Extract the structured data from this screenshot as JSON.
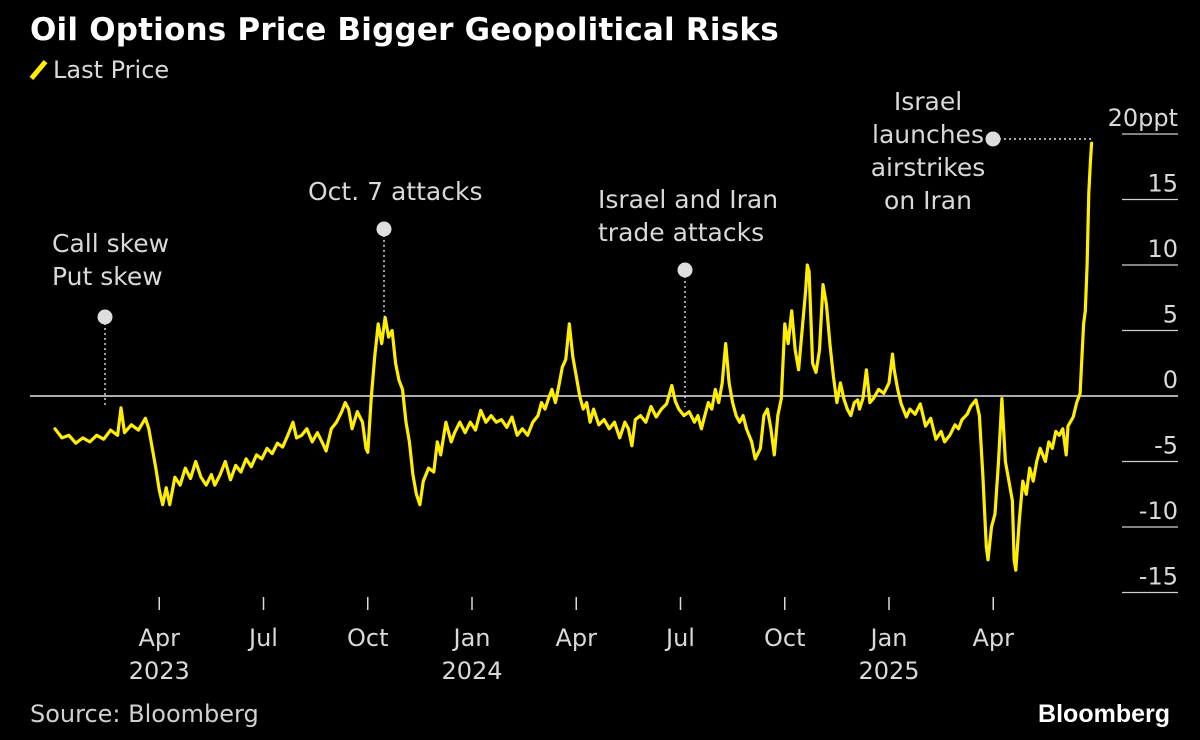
{
  "title": "Oil Options Price Bigger Geopolitical Risks",
  "legend": {
    "label": "Last Price",
    "color": "#ffee00"
  },
  "source": "Source: Bloomberg",
  "brand": "Bloomberg",
  "chart_data": {
    "type": "line",
    "title": "Oil Options Price Bigger Geopolitical Risks",
    "ylabel": "ppt",
    "ylim": [
      -15,
      20
    ],
    "yticks": [
      "-15",
      "-10",
      "-5",
      "0",
      "5",
      "10",
      "15",
      "20ppt"
    ],
    "ytick_values": [
      -15,
      -10,
      -5,
      0,
      5,
      10,
      15,
      20
    ],
    "xlim": [
      0,
      30.2
    ],
    "xticks": [
      {
        "label": "Apr",
        "year": "2023",
        "x": 3
      },
      {
        "label": "Jul",
        "year": "",
        "x": 6
      },
      {
        "label": "Oct",
        "year": "",
        "x": 9
      },
      {
        "label": "Jan",
        "year": "2024",
        "x": 12
      },
      {
        "label": "Apr",
        "year": "",
        "x": 15
      },
      {
        "label": "Jul",
        "year": "",
        "x": 18
      },
      {
        "label": "Oct",
        "year": "",
        "x": 21
      },
      {
        "label": "Jan",
        "year": "2025",
        "x": 24
      },
      {
        "label": "Apr",
        "year": "",
        "x": 27
      }
    ],
    "x_unit": "months since Jan 2023",
    "series": [
      {
        "name": "Last Price",
        "color": "#ffee00",
        "points": [
          [
            0.0,
            -2.5
          ],
          [
            0.2,
            -3.2
          ],
          [
            0.4,
            -3.0
          ],
          [
            0.6,
            -3.6
          ],
          [
            0.8,
            -3.2
          ],
          [
            1.0,
            -3.5
          ],
          [
            1.2,
            -3.0
          ],
          [
            1.4,
            -3.3
          ],
          [
            1.6,
            -2.6
          ],
          [
            1.8,
            -3.0
          ],
          [
            1.9,
            -0.9
          ],
          [
            2.0,
            -2.8
          ],
          [
            2.2,
            -2.2
          ],
          [
            2.4,
            -2.6
          ],
          [
            2.6,
            -1.7
          ],
          [
            2.7,
            -2.5
          ],
          [
            2.9,
            -5.5
          ],
          [
            3.0,
            -7.2
          ],
          [
            3.1,
            -8.3
          ],
          [
            3.2,
            -7.0
          ],
          [
            3.3,
            -8.3
          ],
          [
            3.45,
            -6.2
          ],
          [
            3.6,
            -6.8
          ],
          [
            3.75,
            -5.5
          ],
          [
            3.9,
            -6.3
          ],
          [
            4.05,
            -5.0
          ],
          [
            4.2,
            -6.2
          ],
          [
            4.35,
            -6.8
          ],
          [
            4.5,
            -6.0
          ],
          [
            4.6,
            -6.8
          ],
          [
            4.75,
            -6.0
          ],
          [
            4.9,
            -5.0
          ],
          [
            5.05,
            -6.4
          ],
          [
            5.2,
            -5.3
          ],
          [
            5.35,
            -5.8
          ],
          [
            5.5,
            -4.8
          ],
          [
            5.65,
            -5.4
          ],
          [
            5.8,
            -4.5
          ],
          [
            5.95,
            -4.8
          ],
          [
            6.1,
            -4.0
          ],
          [
            6.25,
            -4.4
          ],
          [
            6.4,
            -3.6
          ],
          [
            6.55,
            -3.9
          ],
          [
            6.7,
            -3.0
          ],
          [
            6.85,
            -2.0
          ],
          [
            6.95,
            -3.2
          ],
          [
            7.1,
            -3.0
          ],
          [
            7.25,
            -2.5
          ],
          [
            7.4,
            -3.5
          ],
          [
            7.55,
            -2.8
          ],
          [
            7.7,
            -3.6
          ],
          [
            7.8,
            -4.2
          ],
          [
            7.95,
            -2.5
          ],
          [
            8.1,
            -2.0
          ],
          [
            8.25,
            -1.2
          ],
          [
            8.35,
            -0.5
          ],
          [
            8.45,
            -1.0
          ],
          [
            8.55,
            -2.5
          ],
          [
            8.7,
            -1.2
          ],
          [
            8.85,
            -2.0
          ],
          [
            8.95,
            -4.0
          ],
          [
            9.0,
            -4.3
          ],
          [
            9.1,
            -0.2
          ],
          [
            9.2,
            3.0
          ],
          [
            9.3,
            5.5
          ],
          [
            9.4,
            4.0
          ],
          [
            9.5,
            6.0
          ],
          [
            9.6,
            4.5
          ],
          [
            9.7,
            5.0
          ],
          [
            9.8,
            2.5
          ],
          [
            9.9,
            1.2
          ],
          [
            10.0,
            0.5
          ],
          [
            10.1,
            -2.0
          ],
          [
            10.2,
            -3.5
          ],
          [
            10.3,
            -6.0
          ],
          [
            10.4,
            -7.5
          ],
          [
            10.5,
            -8.3
          ],
          [
            10.6,
            -6.5
          ],
          [
            10.75,
            -5.5
          ],
          [
            10.9,
            -5.8
          ],
          [
            11.0,
            -3.5
          ],
          [
            11.1,
            -4.5
          ],
          [
            11.25,
            -2.0
          ],
          [
            11.4,
            -3.5
          ],
          [
            11.5,
            -2.8
          ],
          [
            11.65,
            -2.0
          ],
          [
            11.8,
            -2.8
          ],
          [
            11.95,
            -2.0
          ],
          [
            12.1,
            -2.6
          ],
          [
            12.25,
            -1.1
          ],
          [
            12.4,
            -2.0
          ],
          [
            12.55,
            -1.5
          ],
          [
            12.7,
            -2.0
          ],
          [
            12.85,
            -1.8
          ],
          [
            13.0,
            -2.4
          ],
          [
            13.15,
            -1.6
          ],
          [
            13.3,
            -3.0
          ],
          [
            13.45,
            -2.5
          ],
          [
            13.6,
            -3.0
          ],
          [
            13.75,
            -2.0
          ],
          [
            13.9,
            -1.5
          ],
          [
            14.0,
            -0.5
          ],
          [
            14.1,
            -1.0
          ],
          [
            14.2,
            -0.2
          ],
          [
            14.3,
            0.5
          ],
          [
            14.4,
            -0.5
          ],
          [
            14.5,
            0.8
          ],
          [
            14.6,
            2.2
          ],
          [
            14.7,
            2.8
          ],
          [
            14.8,
            5.5
          ],
          [
            14.9,
            3.0
          ],
          [
            15.0,
            1.5
          ],
          [
            15.1,
            0.0
          ],
          [
            15.2,
            -1.0
          ],
          [
            15.3,
            -0.5
          ],
          [
            15.4,
            -2.0
          ],
          [
            15.5,
            -1.0
          ],
          [
            15.65,
            -2.2
          ],
          [
            15.8,
            -1.8
          ],
          [
            15.95,
            -2.5
          ],
          [
            16.1,
            -2.0
          ],
          [
            16.25,
            -3.2
          ],
          [
            16.4,
            -2.0
          ],
          [
            16.5,
            -2.5
          ],
          [
            16.6,
            -3.8
          ],
          [
            16.7,
            -1.8
          ],
          [
            16.85,
            -1.5
          ],
          [
            17.0,
            -2.0
          ],
          [
            17.15,
            -0.8
          ],
          [
            17.3,
            -1.6
          ],
          [
            17.45,
            -1.0
          ],
          [
            17.6,
            -0.6
          ],
          [
            17.75,
            0.8
          ],
          [
            17.85,
            -0.4
          ],
          [
            17.95,
            -1.0
          ],
          [
            18.1,
            -1.5
          ],
          [
            18.25,
            -1.2
          ],
          [
            18.4,
            -2.0
          ],
          [
            18.5,
            -1.5
          ],
          [
            18.6,
            -2.5
          ],
          [
            18.7,
            -1.5
          ],
          [
            18.8,
            -0.5
          ],
          [
            18.9,
            -1.0
          ],
          [
            19.0,
            0.5
          ],
          [
            19.1,
            -0.5
          ],
          [
            19.2,
            1.0
          ],
          [
            19.3,
            4.0
          ],
          [
            19.4,
            1.0
          ],
          [
            19.5,
            -0.5
          ],
          [
            19.6,
            -1.5
          ],
          [
            19.7,
            -2.0
          ],
          [
            19.8,
            -1.5
          ],
          [
            19.9,
            -2.5
          ],
          [
            20.05,
            -3.5
          ],
          [
            20.15,
            -4.8
          ],
          [
            20.3,
            -4.0
          ],
          [
            20.4,
            -1.5
          ],
          [
            20.5,
            -1.0
          ],
          [
            20.6,
            -2.5
          ],
          [
            20.7,
            -4.5
          ],
          [
            20.8,
            -1.5
          ],
          [
            20.9,
            -0.2
          ],
          [
            21.0,
            5.5
          ],
          [
            21.1,
            4.0
          ],
          [
            21.2,
            6.5
          ],
          [
            21.3,
            3.5
          ],
          [
            21.4,
            2.0
          ],
          [
            21.5,
            5.0
          ],
          [
            21.6,
            8.0
          ],
          [
            21.65,
            10.0
          ],
          [
            21.7,
            9.5
          ],
          [
            21.8,
            2.5
          ],
          [
            21.9,
            1.8
          ],
          [
            22.0,
            3.5
          ],
          [
            22.1,
            8.5
          ],
          [
            22.2,
            7.0
          ],
          [
            22.3,
            4.0
          ],
          [
            22.4,
            1.5
          ],
          [
            22.5,
            -0.5
          ],
          [
            22.6,
            1.0
          ],
          [
            22.7,
            -0.2
          ],
          [
            22.8,
            -1.0
          ],
          [
            22.9,
            -1.5
          ],
          [
            23.0,
            -0.5
          ],
          [
            23.1,
            -0.3
          ],
          [
            23.15,
            -1.0
          ],
          [
            23.25,
            -0.2
          ],
          [
            23.35,
            2.0
          ],
          [
            23.45,
            -0.5
          ],
          [
            23.55,
            -0.2
          ],
          [
            23.7,
            0.5
          ],
          [
            23.85,
            0.2
          ],
          [
            24.0,
            1.0
          ],
          [
            24.1,
            3.2
          ],
          [
            24.15,
            2.0
          ],
          [
            24.25,
            0.5
          ],
          [
            24.35,
            -0.6
          ],
          [
            24.5,
            -1.6
          ],
          [
            24.6,
            -1.0
          ],
          [
            24.75,
            -1.4
          ],
          [
            24.9,
            -0.6
          ],
          [
            25.05,
            -2.3
          ],
          [
            25.2,
            -1.7
          ],
          [
            25.35,
            -3.3
          ],
          [
            25.5,
            -2.7
          ],
          [
            25.6,
            -3.5
          ],
          [
            25.75,
            -3.0
          ],
          [
            25.9,
            -2.2
          ],
          [
            26.0,
            -2.5
          ],
          [
            26.1,
            -1.8
          ],
          [
            26.25,
            -1.4
          ],
          [
            26.35,
            -0.8
          ],
          [
            26.5,
            -0.3
          ],
          [
            26.6,
            -1.5
          ],
          [
            26.7,
            -6.0
          ],
          [
            26.8,
            -11.5
          ],
          [
            26.85,
            -12.5
          ],
          [
            26.95,
            -10.0
          ],
          [
            27.05,
            -9.0
          ],
          [
            27.15,
            -5.0
          ],
          [
            27.25,
            -0.2
          ],
          [
            27.35,
            -5.0
          ],
          [
            27.45,
            -6.5
          ],
          [
            27.55,
            -8.0
          ],
          [
            27.6,
            -12.5
          ],
          [
            27.65,
            -13.3
          ],
          [
            27.75,
            -9.5
          ],
          [
            27.85,
            -6.5
          ],
          [
            27.95,
            -7.5
          ],
          [
            28.05,
            -5.5
          ],
          [
            28.15,
            -6.5
          ],
          [
            28.25,
            -5.0
          ],
          [
            28.35,
            -4.0
          ],
          [
            28.5,
            -5.0
          ],
          [
            28.6,
            -3.5
          ],
          [
            28.7,
            -4.0
          ],
          [
            28.8,
            -2.7
          ],
          [
            28.9,
            -3.0
          ],
          [
            29.0,
            -2.5
          ],
          [
            29.1,
            -4.5
          ],
          [
            29.15,
            -2.3
          ],
          [
            29.3,
            -1.6
          ],
          [
            29.4,
            -0.5
          ],
          [
            29.5,
            0.2
          ],
          [
            29.6,
            5.5
          ],
          [
            29.65,
            6.5
          ],
          [
            29.7,
            10.0
          ],
          [
            29.75,
            15.5
          ],
          [
            29.8,
            18.0
          ],
          [
            29.83,
            19.3
          ]
        ]
      }
    ],
    "annotations": [
      {
        "lines": [
          "Call skew",
          "Put skew"
        ],
        "x": 1.45,
        "y": -0.9
      },
      {
        "lines": [
          "Oct. 7 attacks"
        ],
        "x": 9.45,
        "y": 6.0
      },
      {
        "lines": [
          "Israel and Iran",
          "trade attacks"
        ],
        "x": 17.95,
        "y": -1.0
      },
      {
        "lines": [
          "Israel",
          "launches",
          "airstrikes",
          "on Iran"
        ],
        "x": 29.83,
        "y": 19.3
      }
    ]
  }
}
